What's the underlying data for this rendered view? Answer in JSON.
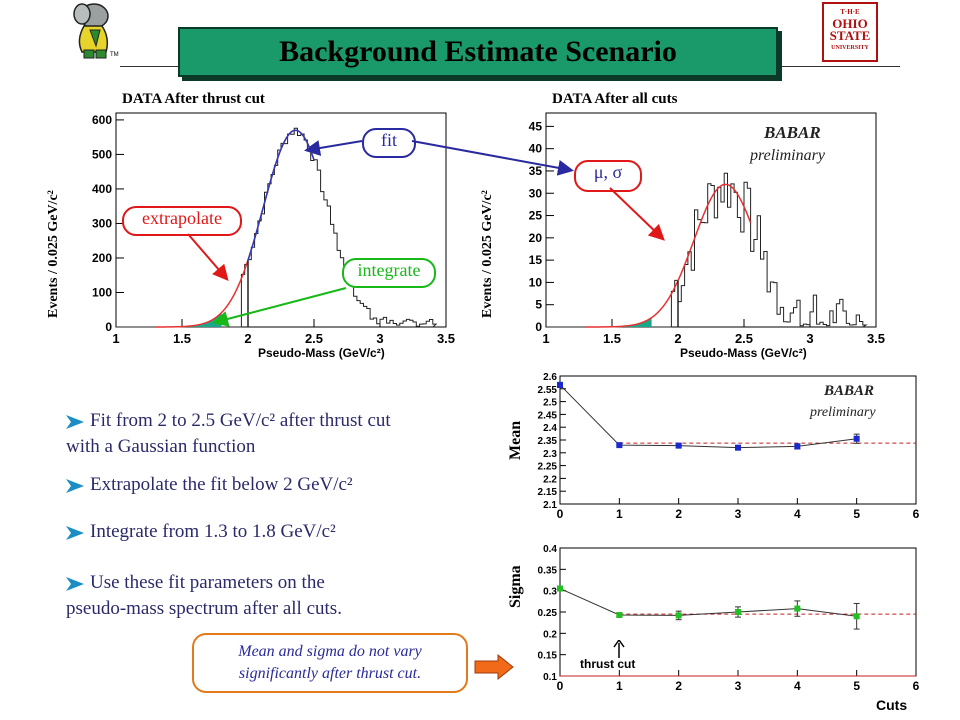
{
  "header": {
    "title": "Background Estimate Scenario",
    "logo_left": "babar-elephant-logo",
    "logo_right": "ohio-state-logo",
    "logo_right_lines": [
      "T·H·E",
      "OHIO",
      "STATE",
      "UNIVERSITY"
    ],
    "logo_left_tm": "TM"
  },
  "plots": {
    "left": {
      "title": "DATA After thrust cut",
      "ylabel": "Events / 0.025 GeV/c²",
      "xlabel": "Pseudo-Mass (GeV/c²)",
      "x_ticks": [
        "1",
        "1.5",
        "2",
        "2.5",
        "3",
        "3.5"
      ],
      "y_ticks": [
        "0",
        "100",
        "200",
        "300",
        "400",
        "500",
        "600"
      ]
    },
    "right": {
      "title": "DATA After all cuts",
      "ylabel": "Events / 0.025 GeV/c²",
      "xlabel": "Pseudo-Mass (GeV/c²)",
      "x_ticks": [
        "1",
        "1.5",
        "2",
        "2.5",
        "3",
        "3.5"
      ],
      "y_ticks": [
        "0",
        "5",
        "10",
        "15",
        "20",
        "25",
        "30",
        "35",
        "40",
        "45"
      ],
      "babar": "BABAR",
      "preliminary": "preliminary"
    }
  },
  "callouts": {
    "fit": "fit",
    "extrapolate": "extrapolate",
    "integrate": "integrate",
    "mu_sigma": "μ, σ"
  },
  "bullets": [
    {
      "line1": "Fit from 2 to 2.5 GeV/c² after thrust cut",
      "line2": "with a Gaussian function"
    },
    {
      "line1": "Extrapolate the fit below 2 GeV/c²",
      "line2": ""
    },
    {
      "line1": "Integrate from 1.3 to 1.8 GeV/c²",
      "line2": ""
    },
    {
      "line1": "Use these fit parameters on the",
      "line2": "pseudo-mass spectrum after all cuts."
    }
  ],
  "note": {
    "line1": "Mean and sigma do not vary",
    "line2": "significantly after thrust cut."
  },
  "mean_plot": {
    "ylabel": "Mean",
    "babar": "BABAR",
    "preliminary": "preliminary",
    "y_ticks": [
      "2.1",
      "2.15",
      "2.2",
      "2.25",
      "2.3",
      "2.35",
      "2.4",
      "2.45",
      "2.5",
      "2.55",
      "2.6"
    ],
    "x_ticks": [
      "0",
      "1",
      "2",
      "3",
      "4",
      "5",
      "6"
    ]
  },
  "sigma_plot": {
    "ylabel": "Sigma",
    "xlabel": "Cuts",
    "annotation": "thrust cut",
    "y_ticks": [
      "0.1",
      "0.15",
      "0.2",
      "0.25",
      "0.3",
      "0.35",
      "0.4"
    ],
    "x_ticks": [
      "0",
      "1",
      "2",
      "3",
      "4",
      "5",
      "6"
    ]
  },
  "chart_data": [
    {
      "type": "line",
      "title": "",
      "xlabel": "",
      "ylabel": "Mean",
      "xlim": [
        0,
        6
      ],
      "ylim": [
        2.1,
        2.6
      ],
      "x": [
        0,
        1,
        2,
        3,
        4,
        5
      ],
      "series": [
        {
          "values": [
            2.565,
            2.33,
            2.328,
            2.32,
            2.325,
            2.355
          ]
        }
      ],
      "errors": [
        0.01,
        0.004,
        0.004,
        0.005,
        0.01,
        0.018
      ],
      "reference_line": 2.338
    },
    {
      "type": "line",
      "title": "",
      "xlabel": "Cuts",
      "ylabel": "Sigma",
      "xlim": [
        0,
        6
      ],
      "ylim": [
        0.1,
        0.4
      ],
      "x": [
        0,
        1,
        2,
        3,
        4,
        5
      ],
      "series": [
        {
          "values": [
            0.305,
            0.243,
            0.242,
            0.25,
            0.258,
            0.24
          ]
        }
      ],
      "errors": [
        0.005,
        0.005,
        0.01,
        0.012,
        0.018,
        0.03
      ],
      "reference_line": 0.245
    }
  ]
}
